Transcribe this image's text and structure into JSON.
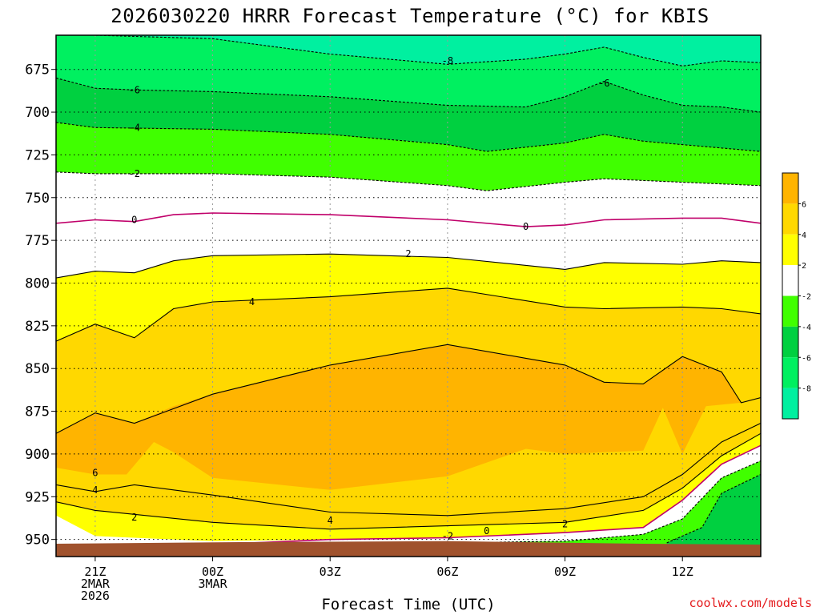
{
  "title": "2026030220 HRRR Forecast Temperature (°C) for KBIS",
  "xlabel": "Forecast Time (UTC)",
  "credit": "coolwx.com/models",
  "colors": {
    "cold_8": "#00f0a0",
    "cold_6": "#00f060",
    "cold_4": "#00d040",
    "cold_2": "#40ff00",
    "neutral": "#ffffff",
    "warm_2": "#ffff00",
    "warm_4": "#ffd800",
    "warm_6": "#ffb400",
    "ground": "#a0522d",
    "zero_line": "#c0006a"
  },
  "chart_data": {
    "type": "heatmap",
    "subtype": "time-pressure temperature cross-section",
    "title": "2026030220 HRRR Forecast Temperature (°C) for KBIS",
    "xlabel": "Forecast Time (UTC)",
    "ylabel": "",
    "x_range_hours": [
      -1,
      17
    ],
    "y_range_hPa": [
      655,
      960
    ],
    "y_scale": "linear",
    "y_inverted": true,
    "grid": true,
    "x_ticks": [
      {
        "hour": 0,
        "lines": [
          "21Z",
          "2MAR",
          "2026"
        ]
      },
      {
        "hour": 3,
        "lines": [
          "00Z",
          "3MAR"
        ]
      },
      {
        "hour": 6,
        "lines": [
          "03Z"
        ]
      },
      {
        "hour": 9,
        "lines": [
          "06Z"
        ]
      },
      {
        "hour": 12,
        "lines": [
          "09Z"
        ]
      },
      {
        "hour": 15,
        "lines": [
          "12Z"
        ]
      }
    ],
    "y_ticks": [
      675,
      700,
      725,
      750,
      775,
      800,
      825,
      850,
      875,
      900,
      925,
      950
    ],
    "colorbar": {
      "ticks": [
        "6",
        "4",
        "2",
        "-2",
        "-4",
        "-6",
        "-8"
      ],
      "bands": [
        {
          "range": [
            6,
            8
          ],
          "color": "#ffb400"
        },
        {
          "range": [
            4,
            6
          ],
          "color": "#ffd800"
        },
        {
          "range": [
            2,
            4
          ],
          "color": "#ffff00"
        },
        {
          "range": [
            -2,
            2
          ],
          "color": "#ffffff"
        },
        {
          "range": [
            -4,
            -2
          ],
          "color": "#40ff00"
        },
        {
          "range": [
            -6,
            -4
          ],
          "color": "#00d040"
        },
        {
          "range": [
            -8,
            -6
          ],
          "color": "#00f060"
        },
        {
          "range": [
            -10,
            -8
          ],
          "color": "#00f0a0"
        }
      ],
      "placement": "right"
    },
    "contours": [
      {
        "level": -8,
        "style": "dashed",
        "color": "#000000",
        "points": [
          [
            -1,
            653
          ],
          [
            0,
            655
          ],
          [
            3,
            657
          ],
          [
            6,
            666
          ],
          [
            9,
            672
          ],
          [
            11,
            669
          ],
          [
            12,
            666
          ],
          [
            13,
            662
          ],
          [
            14,
            668
          ],
          [
            15,
            673
          ],
          [
            16,
            670
          ],
          [
            17,
            671
          ]
        ]
      },
      {
        "level": -6,
        "style": "dashed",
        "color": "#000000",
        "points": [
          [
            -1,
            680
          ],
          [
            0,
            686
          ],
          [
            1,
            687
          ],
          [
            3,
            688
          ],
          [
            6,
            691
          ],
          [
            9,
            696
          ],
          [
            11,
            697
          ],
          [
            12,
            691
          ],
          [
            13,
            682
          ],
          [
            14,
            690
          ],
          [
            15,
            696
          ],
          [
            16,
            697
          ],
          [
            17,
            700
          ]
        ]
      },
      {
        "level": -4,
        "style": "dashed",
        "color": "#000000",
        "points": [
          [
            -1,
            706
          ],
          [
            0,
            709
          ],
          [
            3,
            710
          ],
          [
            6,
            713
          ],
          [
            9,
            719
          ],
          [
            10,
            723
          ],
          [
            12,
            718
          ],
          [
            13,
            713
          ],
          [
            14,
            717
          ],
          [
            15,
            719
          ],
          [
            17,
            723
          ]
        ]
      },
      {
        "level": -2,
        "style": "dashed",
        "color": "#000000",
        "points": [
          [
            -1,
            735
          ],
          [
            0,
            736
          ],
          [
            3,
            736
          ],
          [
            6,
            738
          ],
          [
            9,
            743
          ],
          [
            10,
            746
          ],
          [
            12,
            741
          ],
          [
            13,
            739
          ],
          [
            14,
            740
          ],
          [
            15,
            741
          ],
          [
            17,
            743
          ]
        ]
      },
      {
        "level": 0,
        "style": "solid",
        "color": "#c0006a",
        "points": [
          [
            -1,
            765
          ],
          [
            0,
            763
          ],
          [
            1,
            764
          ],
          [
            2,
            760
          ],
          [
            3,
            759
          ],
          [
            6,
            760
          ],
          [
            9,
            763
          ],
          [
            11,
            767
          ],
          [
            12,
            766
          ],
          [
            13,
            763
          ],
          [
            15,
            762
          ],
          [
            16,
            762
          ],
          [
            17,
            765
          ]
        ]
      },
      {
        "level": 2,
        "style": "solid",
        "color": "#000000",
        "points": [
          [
            -1,
            797
          ],
          [
            0,
            793
          ],
          [
            1,
            794
          ],
          [
            2,
            787
          ],
          [
            3,
            784
          ],
          [
            6,
            783
          ],
          [
            9,
            785
          ],
          [
            12,
            792
          ],
          [
            13,
            788
          ],
          [
            15,
            789
          ],
          [
            16,
            787
          ],
          [
            17,
            788
          ]
        ]
      },
      {
        "level": 4,
        "style": "solid",
        "color": "#000000",
        "points": [
          [
            -1,
            834
          ],
          [
            0,
            824
          ],
          [
            1,
            832
          ],
          [
            2,
            815
          ],
          [
            3,
            811
          ],
          [
            6,
            808
          ],
          [
            9,
            803
          ],
          [
            12,
            814
          ],
          [
            13,
            815
          ],
          [
            15,
            814
          ],
          [
            16,
            815
          ],
          [
            17,
            818
          ]
        ]
      },
      {
        "level": 6,
        "style": "solid",
        "color": "#000000",
        "points": [
          [
            -1,
            888
          ],
          [
            0,
            876
          ],
          [
            1,
            882
          ],
          [
            3,
            865
          ],
          [
            6,
            848
          ],
          [
            9,
            836
          ],
          [
            11,
            844
          ],
          [
            12,
            848
          ],
          [
            13,
            858
          ],
          [
            14,
            859
          ],
          [
            15,
            843
          ],
          [
            16,
            852
          ],
          [
            16.5,
            870
          ],
          [
            17,
            867
          ]
        ]
      }
    ],
    "contour_labels": [
      {
        "text": "-8",
        "hour": 9,
        "hPa": 670
      },
      {
        "text": "-6",
        "hour": 1,
        "hPa": 687
      },
      {
        "text": "-6",
        "hour": 13,
        "hPa": 683
      },
      {
        "text": "-4",
        "hour": 1,
        "hPa": 709
      },
      {
        "text": "-2",
        "hour": 1,
        "hPa": 736
      },
      {
        "text": "0",
        "hour": 1,
        "hPa": 763
      },
      {
        "text": "0",
        "hour": 11,
        "hPa": 767
      },
      {
        "text": "2",
        "hour": 8,
        "hPa": 783
      },
      {
        "text": "4",
        "hour": 4,
        "hPa": 811
      },
      {
        "text": "6",
        "hour": 0,
        "hPa": 911
      },
      {
        "text": "4",
        "hour": 0,
        "hPa": 921
      },
      {
        "text": "2",
        "hour": 1,
        "hPa": 937
      },
      {
        "text": "4",
        "hour": 6,
        "hPa": 939
      },
      {
        "text": "2",
        "hour": 12,
        "hPa": 941
      },
      {
        "text": "0",
        "hour": 10,
        "hPa": 945
      },
      {
        "text": "-2",
        "hour": 9,
        "hPa": 948
      }
    ],
    "ground_hPa": 953
  }
}
